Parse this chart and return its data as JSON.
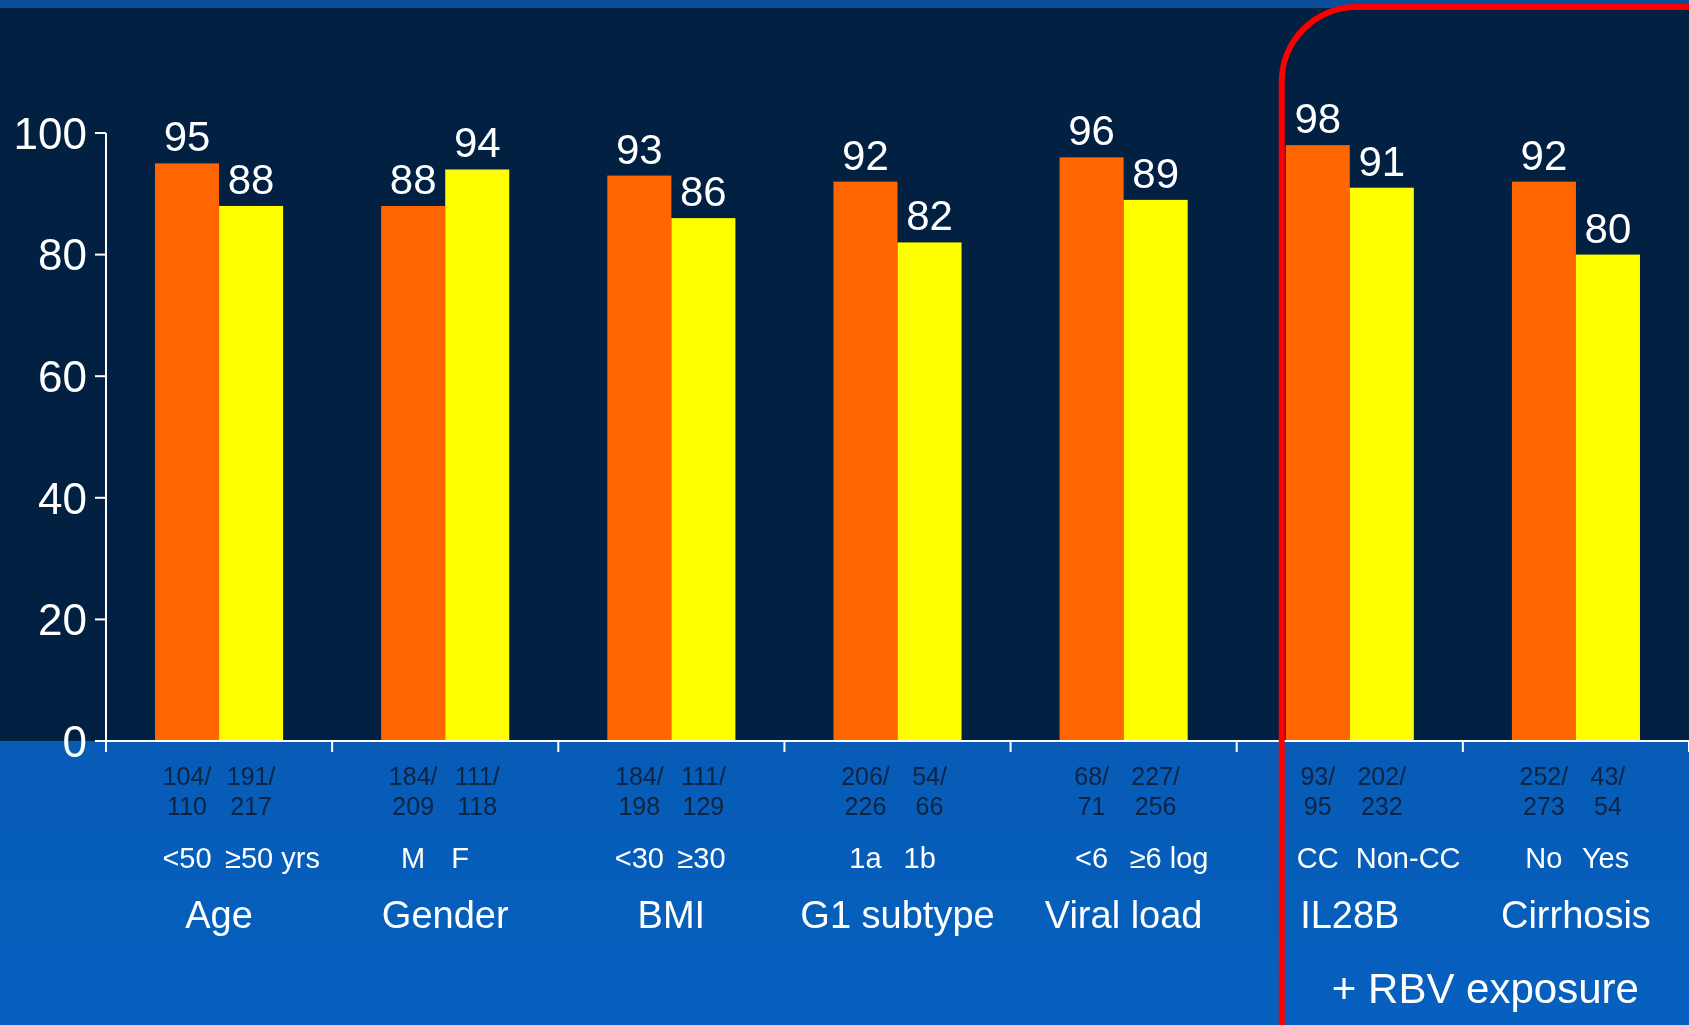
{
  "chart_data": {
    "type": "bar",
    "categories": [
      "Age",
      "Gender",
      "BMI",
      "G1 subtype",
      "Viral load",
      "IL28B",
      "Cirrhosis"
    ],
    "series": [
      {
        "color": "#ff6600",
        "values": [
          95,
          88,
          93,
          92,
          96,
          98,
          92
        ]
      },
      {
        "color": "#ffff00",
        "values": [
          88,
          94,
          86,
          82,
          89,
          91,
          80
        ]
      }
    ],
    "ylim": [
      0,
      100
    ],
    "yticks": [
      0,
      20,
      40,
      60,
      80,
      100
    ],
    "data_labels": true,
    "annotations": [
      "104/110",
      "191/217",
      "184/209",
      "111/118",
      "184/198",
      "111/129",
      "206/226",
      "54/66",
      "68/71",
      "227/256",
      "93/95",
      "202/232",
      "252/273",
      "43/54",
      "<50",
      "≥50 yrs",
      "M",
      "F",
      "<30",
      "≥30",
      "1a",
      "1b",
      "<6",
      "≥6 log",
      "CC",
      "Non-CC",
      "No",
      "Yes",
      "+ RBV exposure"
    ]
  }
}
